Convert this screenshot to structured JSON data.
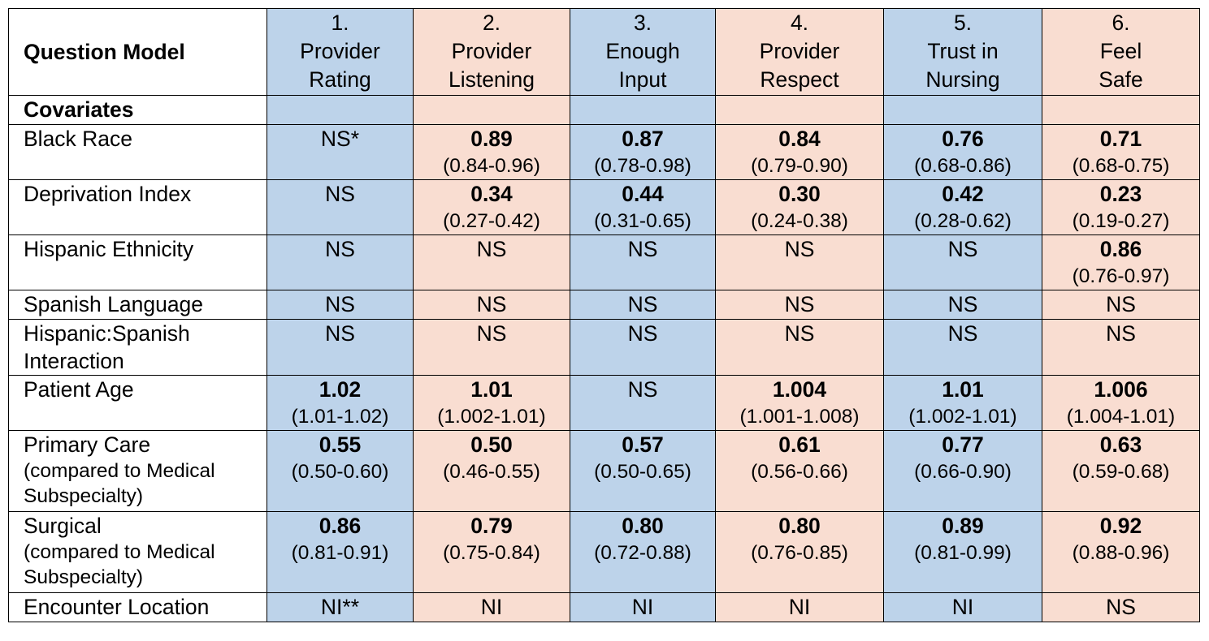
{
  "header": {
    "question_model": "Question Model",
    "columns": [
      {
        "num": "1.",
        "line1": "Provider",
        "line2": "Rating"
      },
      {
        "num": "2.",
        "line1": "Provider",
        "line2": "Listening"
      },
      {
        "num": "3.",
        "line1": "Enough",
        "line2": "Input"
      },
      {
        "num": "4.",
        "line1": "Provider",
        "line2": "Respect"
      },
      {
        "num": "5.",
        "line1": "Trust in",
        "line2": "Nursing"
      },
      {
        "num": "6.",
        "line1": "Feel",
        "line2": "Safe"
      }
    ]
  },
  "section_label": "Covariates",
  "rows": [
    {
      "label": "Black Race",
      "sub1": "",
      "sub2": "",
      "cells": [
        {
          "v": "NS*",
          "b": false,
          "ci": ""
        },
        {
          "v": "0.89",
          "b": true,
          "ci": "(0.84-0.96)"
        },
        {
          "v": "0.87",
          "b": true,
          "ci": "(0.78-0.98)"
        },
        {
          "v": "0.84",
          "b": true,
          "ci": "(0.79-0.90)"
        },
        {
          "v": "0.76",
          "b": true,
          "ci": "(0.68-0.86)"
        },
        {
          "v": "0.71",
          "b": true,
          "ci": "(0.68-0.75)"
        }
      ]
    },
    {
      "label": "Deprivation Index",
      "sub1": "",
      "sub2": "",
      "cells": [
        {
          "v": "NS",
          "b": false,
          "ci": ""
        },
        {
          "v": "0.34",
          "b": true,
          "ci": "(0.27-0.42)"
        },
        {
          "v": "0.44",
          "b": true,
          "ci": "(0.31-0.65)"
        },
        {
          "v": "0.30",
          "b": true,
          "ci": "(0.24-0.38)"
        },
        {
          "v": "0.42",
          "b": true,
          "ci": "(0.28-0.62)"
        },
        {
          "v": "0.23",
          "b": true,
          "ci": "(0.19-0.27)"
        }
      ]
    },
    {
      "label": "Hispanic Ethnicity",
      "sub1": "",
      "sub2": "",
      "cells": [
        {
          "v": "NS",
          "b": false,
          "ci": ""
        },
        {
          "v": "NS",
          "b": false,
          "ci": ""
        },
        {
          "v": "NS",
          "b": false,
          "ci": ""
        },
        {
          "v": "NS",
          "b": false,
          "ci": ""
        },
        {
          "v": "NS",
          "b": false,
          "ci": ""
        },
        {
          "v": "0.86",
          "b": true,
          "ci": "(0.76-0.97)"
        }
      ]
    },
    {
      "label": "Spanish Language",
      "sub1": "",
      "sub2": "",
      "cells": [
        {
          "v": "NS",
          "b": false,
          "ci": ""
        },
        {
          "v": "NS",
          "b": false,
          "ci": ""
        },
        {
          "v": "NS",
          "b": false,
          "ci": ""
        },
        {
          "v": "NS",
          "b": false,
          "ci": ""
        },
        {
          "v": "NS",
          "b": false,
          "ci": ""
        },
        {
          "v": "NS",
          "b": false,
          "ci": ""
        }
      ]
    },
    {
      "label": "Hispanic:Spanish",
      "sub1": "Interaction",
      "sub2": "",
      "cells": [
        {
          "v": "NS",
          "b": false,
          "ci": ""
        },
        {
          "v": "NS",
          "b": false,
          "ci": ""
        },
        {
          "v": "NS",
          "b": false,
          "ci": ""
        },
        {
          "v": "NS",
          "b": false,
          "ci": ""
        },
        {
          "v": "NS",
          "b": false,
          "ci": ""
        },
        {
          "v": "NS",
          "b": false,
          "ci": ""
        }
      ]
    },
    {
      "label": "Patient Age",
      "sub1": "",
      "sub2": "",
      "cells": [
        {
          "v": "1.02",
          "b": true,
          "ci": "(1.01-1.02)"
        },
        {
          "v": "1.01",
          "b": true,
          "ci": "(1.002-1.01)"
        },
        {
          "v": "NS",
          "b": false,
          "ci": ""
        },
        {
          "v": "1.004",
          "b": true,
          "ci": "(1.001-1.008)"
        },
        {
          "v": "1.01",
          "b": true,
          "ci": "(1.002-1.01)"
        },
        {
          "v": "1.006",
          "b": true,
          "ci": "(1.004-1.01)"
        }
      ]
    },
    {
      "label": "Primary Care",
      "sub1": "(compared to Medical",
      "sub2": "Subspecialty)",
      "cells": [
        {
          "v": "0.55",
          "b": true,
          "ci": "(0.50-0.60)"
        },
        {
          "v": "0.50",
          "b": true,
          "ci": "(0.46-0.55)"
        },
        {
          "v": "0.57",
          "b": true,
          "ci": "(0.50-0.65)"
        },
        {
          "v": "0.61",
          "b": true,
          "ci": "(0.56-0.66)"
        },
        {
          "v": "0.77",
          "b": true,
          "ci": "(0.66-0.90)"
        },
        {
          "v": "0.63",
          "b": true,
          "ci": "(0.59-0.68)"
        }
      ]
    },
    {
      "label": "Surgical",
      "sub1": "(compared to Medical",
      "sub2": "Subspecialty)",
      "cells": [
        {
          "v": "0.86",
          "b": true,
          "ci": "(0.81-0.91)"
        },
        {
          "v": "0.79",
          "b": true,
          "ci": "(0.75-0.84)"
        },
        {
          "v": "0.80",
          "b": true,
          "ci": "(0.72-0.88)"
        },
        {
          "v": "0.80",
          "b": true,
          "ci": "(0.76-0.85)"
        },
        {
          "v": "0.89",
          "b": true,
          "ci": "(0.81-0.99)"
        },
        {
          "v": "0.92",
          "b": true,
          "ci": "(0.88-0.96)"
        }
      ]
    },
    {
      "label": "Encounter Location",
      "sub1": "",
      "sub2": "",
      "cells": [
        {
          "v": "NI**",
          "b": false,
          "ci": ""
        },
        {
          "v": "NI",
          "b": false,
          "ci": ""
        },
        {
          "v": "NI",
          "b": false,
          "ci": ""
        },
        {
          "v": "NI",
          "b": false,
          "ci": ""
        },
        {
          "v": "NI",
          "b": false,
          "ci": ""
        },
        {
          "v": "NS",
          "b": false,
          "ci": ""
        }
      ]
    }
  ],
  "colors": {
    "blue": "#bdd3ea",
    "peach": "#f9ddd1"
  }
}
